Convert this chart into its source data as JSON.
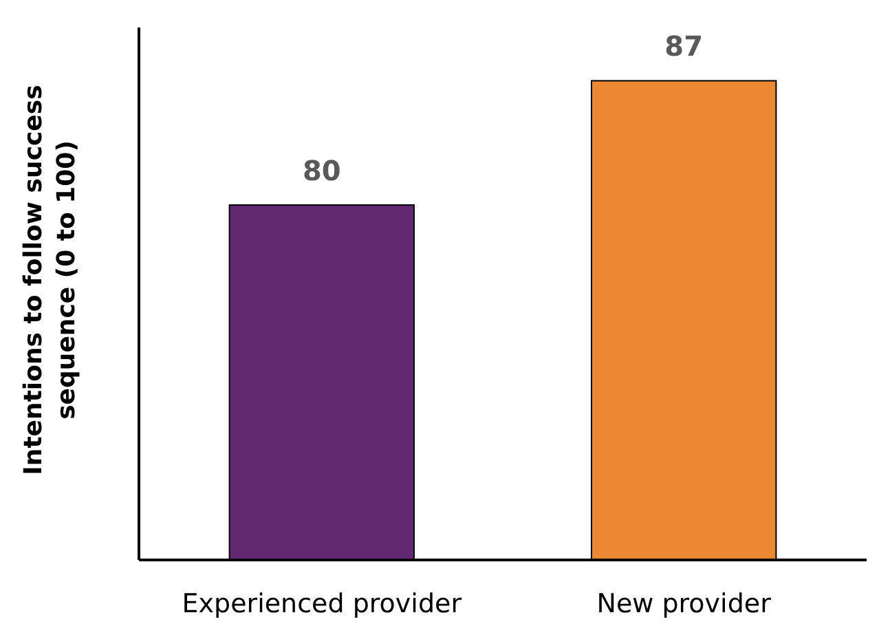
{
  "chart_data": {
    "type": "bar",
    "ylabel": "Intentions to follow success\nsequence (0 to 100)",
    "categories": [
      "Experienced provider",
      "New provider"
    ],
    "values": [
      80,
      87
    ],
    "colors": [
      "#622872",
      "#ec8732"
    ],
    "ylim": [
      60,
      90
    ],
    "data_labels": true,
    "tick_labels": "x"
  }
}
